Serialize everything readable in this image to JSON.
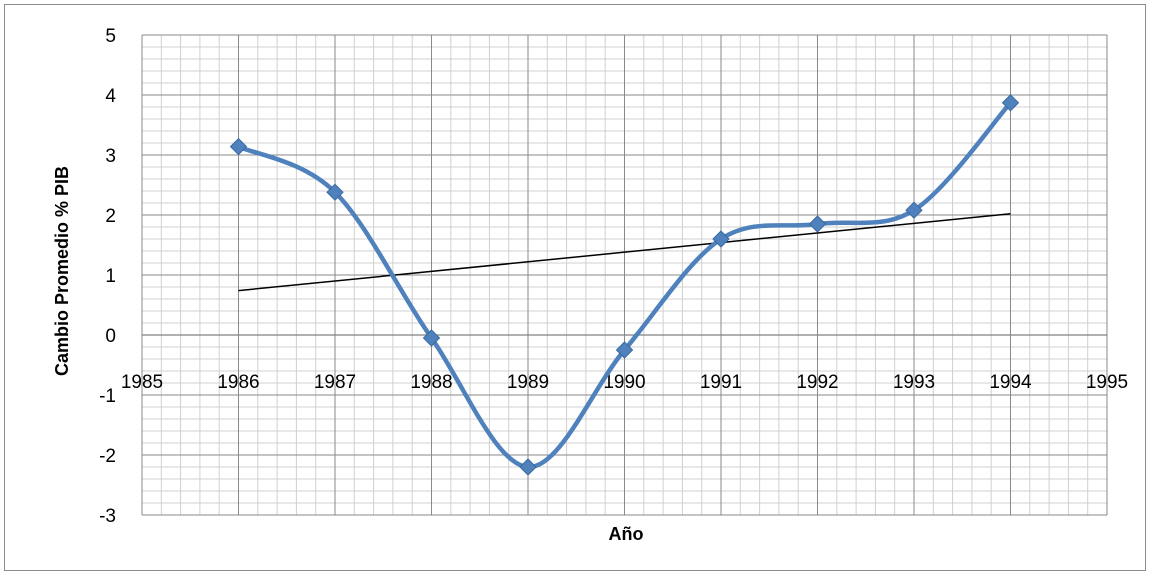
{
  "chart_data": {
    "type": "scatter",
    "title": "",
    "xlabel": "Año",
    "ylabel": "Cambio Promedio % PIB",
    "xlim": [
      1985,
      1995
    ],
    "ylim": [
      -3,
      5
    ],
    "x_ticks": [
      1985,
      1986,
      1987,
      1988,
      1989,
      1990,
      1991,
      1992,
      1993,
      1994,
      1995
    ],
    "y_ticks": [
      -3,
      -2,
      -1,
      0,
      1,
      2,
      3,
      4,
      5
    ],
    "grid": true,
    "legend": "none",
    "series": [
      {
        "style": "smooth-line-with-diamond-markers",
        "color": "#4f81bd",
        "x": [
          1986,
          1987,
          1988,
          1989,
          1990,
          1991,
          1992,
          1993,
          1994
        ],
        "y": [
          3.14,
          2.38,
          -0.05,
          -2.2,
          -0.25,
          1.6,
          1.85,
          2.08,
          3.87
        ]
      },
      {
        "style": "linear-trendline",
        "color": "#000000",
        "x": [
          1986,
          1994
        ],
        "y": [
          0.74,
          2.02
        ]
      }
    ]
  }
}
